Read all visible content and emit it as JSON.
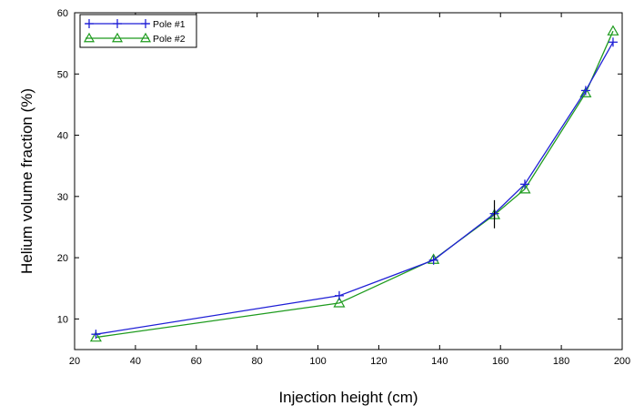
{
  "chart_data": {
    "type": "line",
    "title": "",
    "xlabel": "Injection height (cm)",
    "ylabel": "Helium volume fraction (%)",
    "xlim": [
      20,
      200
    ],
    "ylim": [
      5,
      60
    ],
    "xticks": [
      "20",
      "40",
      "60",
      "80",
      "100",
      "120",
      "140",
      "160",
      "180",
      "200"
    ],
    "yticks": [
      "10",
      "20",
      "30",
      "40",
      "50",
      "60"
    ],
    "grid": false,
    "legend_position": "top-left",
    "series": [
      {
        "name": "Pole #1",
        "color": "#1f1fd6",
        "marker": "plus",
        "x": [
          27,
          107,
          138,
          158,
          168,
          188,
          197
        ],
        "y": [
          7.5,
          13.8,
          19.6,
          27.2,
          32.0,
          47.3,
          55.2
        ]
      },
      {
        "name": "Pole #2",
        "color": "#1e9b1e",
        "marker": "triangle",
        "x": [
          27,
          107,
          138,
          158,
          168,
          188,
          197
        ],
        "y": [
          7.0,
          12.6,
          19.7,
          27.0,
          31.2,
          46.9,
          57.0
        ]
      }
    ],
    "error_bar": {
      "x": 158,
      "y_low": 24.8,
      "y_high": 29.4,
      "color": "#000000"
    }
  }
}
